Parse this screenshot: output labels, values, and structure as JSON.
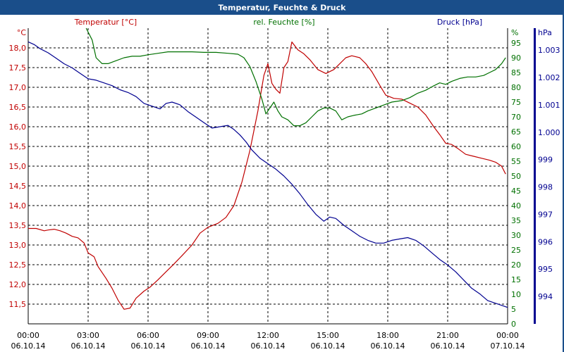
{
  "chart_data": {
    "type": "line",
    "title": "Temperatur, Feuchte & Druck",
    "colors": {
      "temperature": "#c00000",
      "humidity": "#007000",
      "pressure": "#000090",
      "title_bar": "#1a4e8a"
    },
    "grid": true,
    "x_ticks": [
      {
        "time": "00:00",
        "date": "06.10.14"
      },
      {
        "time": "03:00",
        "date": "06.10.14"
      },
      {
        "time": "06:00",
        "date": "06.10.14"
      },
      {
        "time": "09:00",
        "date": "06.10.14"
      },
      {
        "time": "12:00",
        "date": "06.10.14"
      },
      {
        "time": "15:00",
        "date": "06.10.14"
      },
      {
        "time": "18:00",
        "date": "06.10.14"
      },
      {
        "time": "21:00",
        "date": "06.10.14"
      },
      {
        "time": "00:00",
        "date": "07.10.14"
      }
    ],
    "x_range_hours": [
      0,
      24
    ],
    "axes": {
      "temperature": {
        "label": "Temperatur [°C]",
        "unit": "°C",
        "range": [
          11.0,
          18.5
        ],
        "ticks": [
          "11,5",
          "12,0",
          "12,5",
          "13,0",
          "13,5",
          "14,0",
          "14,5",
          "15,0",
          "15,5",
          "16,0",
          "16,5",
          "17,0",
          "17,5",
          "18,0"
        ]
      },
      "humidity": {
        "label": "rel. Feuchte [%]",
        "unit": "%",
        "range": [
          0,
          100
        ],
        "ticks": [
          "0",
          "5",
          "10",
          "15",
          "20",
          "25",
          "30",
          "35",
          "40",
          "45",
          "50",
          "55",
          "60",
          "65",
          "70",
          "75",
          "80",
          "85",
          "90",
          "95"
        ]
      },
      "pressure": {
        "label": "Druck [hPa]",
        "unit": "hPa",
        "range": [
          993.0,
          1003.8
        ],
        "ticks": [
          "994",
          "995",
          "996",
          "997",
          "998",
          "999",
          "1.000",
          "1.001",
          "1.002",
          "1.003"
        ]
      }
    },
    "series": [
      {
        "name": "Temperatur [°C]",
        "axis": "temperature",
        "points": [
          [
            0,
            13.42
          ],
          [
            0.4,
            13.42
          ],
          [
            0.8,
            13.36
          ],
          [
            1.0,
            13.38
          ],
          [
            1.3,
            13.4
          ],
          [
            1.6,
            13.36
          ],
          [
            1.9,
            13.3
          ],
          [
            2.2,
            13.22
          ],
          [
            2.5,
            13.18
          ],
          [
            2.8,
            13.05
          ],
          [
            3.0,
            12.8
          ],
          [
            3.3,
            12.7
          ],
          [
            3.5,
            12.45
          ],
          [
            3.9,
            12.15
          ],
          [
            4.2,
            11.9
          ],
          [
            4.5,
            11.6
          ],
          [
            4.8,
            11.37
          ],
          [
            5.1,
            11.4
          ],
          [
            5.4,
            11.65
          ],
          [
            5.8,
            11.83
          ],
          [
            6.1,
            11.93
          ],
          [
            6.5,
            12.12
          ],
          [
            6.9,
            12.32
          ],
          [
            7.3,
            12.52
          ],
          [
            7.7,
            12.73
          ],
          [
            8.2,
            13.0
          ],
          [
            8.6,
            13.3
          ],
          [
            9.0,
            13.45
          ],
          [
            9.5,
            13.55
          ],
          [
            9.9,
            13.7
          ],
          [
            10.3,
            14.0
          ],
          [
            10.7,
            14.6
          ],
          [
            11.1,
            15.4
          ],
          [
            11.5,
            16.4
          ],
          [
            11.8,
            17.3
          ],
          [
            12.0,
            17.6
          ],
          [
            12.2,
            17.1
          ],
          [
            12.4,
            16.95
          ],
          [
            12.6,
            16.85
          ],
          [
            12.8,
            17.5
          ],
          [
            13.0,
            17.65
          ],
          [
            13.2,
            18.15
          ],
          [
            13.5,
            17.95
          ],
          [
            13.8,
            17.85
          ],
          [
            14.1,
            17.7
          ],
          [
            14.5,
            17.45
          ],
          [
            14.9,
            17.35
          ],
          [
            15.3,
            17.45
          ],
          [
            15.6,
            17.6
          ],
          [
            15.9,
            17.75
          ],
          [
            16.2,
            17.8
          ],
          [
            16.6,
            17.75
          ],
          [
            16.9,
            17.6
          ],
          [
            17.2,
            17.4
          ],
          [
            17.6,
            17.05
          ],
          [
            17.9,
            16.8
          ],
          [
            18.3,
            16.72
          ],
          [
            18.7,
            16.7
          ],
          [
            19.1,
            16.6
          ],
          [
            19.5,
            16.5
          ],
          [
            19.9,
            16.3
          ],
          [
            20.3,
            16.0
          ],
          [
            20.6,
            15.8
          ],
          [
            20.9,
            15.58
          ],
          [
            21.2,
            15.55
          ],
          [
            21.5,
            15.45
          ],
          [
            21.9,
            15.3
          ],
          [
            22.3,
            15.25
          ],
          [
            22.7,
            15.2
          ],
          [
            23.1,
            15.15
          ],
          [
            23.4,
            15.1
          ],
          [
            23.7,
            15.0
          ],
          [
            23.9,
            14.8
          ]
        ]
      },
      {
        "name": "rel. Feuchte [%]",
        "axis": "humidity",
        "points": [
          [
            2.9,
            100
          ],
          [
            3.2,
            96
          ],
          [
            3.4,
            90
          ],
          [
            3.7,
            88
          ],
          [
            4.0,
            88
          ],
          [
            4.4,
            89
          ],
          [
            4.8,
            90
          ],
          [
            5.2,
            90.5
          ],
          [
            5.6,
            90.5
          ],
          [
            6.0,
            91
          ],
          [
            6.5,
            91.5
          ],
          [
            7.0,
            92
          ],
          [
            7.6,
            92
          ],
          [
            8.2,
            92
          ],
          [
            8.8,
            91.8
          ],
          [
            9.4,
            91.8
          ],
          [
            10.0,
            91.5
          ],
          [
            10.5,
            91.2
          ],
          [
            10.8,
            90
          ],
          [
            11.1,
            87
          ],
          [
            11.4,
            82
          ],
          [
            11.7,
            76
          ],
          [
            11.9,
            71
          ],
          [
            12.1,
            73
          ],
          [
            12.3,
            75
          ],
          [
            12.5,
            72
          ],
          [
            12.7,
            70
          ],
          [
            13.0,
            69
          ],
          [
            13.3,
            67
          ],
          [
            13.6,
            67
          ],
          [
            13.9,
            68
          ],
          [
            14.2,
            70
          ],
          [
            14.5,
            72
          ],
          [
            14.8,
            73
          ],
          [
            15.1,
            73
          ],
          [
            15.4,
            72
          ],
          [
            15.7,
            69
          ],
          [
            16.0,
            70
          ],
          [
            16.3,
            70.5
          ],
          [
            16.7,
            71
          ],
          [
            17.0,
            72
          ],
          [
            17.4,
            73
          ],
          [
            17.8,
            74
          ],
          [
            18.2,
            75
          ],
          [
            18.7,
            75.5
          ],
          [
            19.1,
            76.5
          ],
          [
            19.5,
            78
          ],
          [
            19.9,
            79
          ],
          [
            20.3,
            80.5
          ],
          [
            20.6,
            81.5
          ],
          [
            20.9,
            81
          ],
          [
            21.2,
            82
          ],
          [
            21.6,
            83
          ],
          [
            22.0,
            83.5
          ],
          [
            22.4,
            83.5
          ],
          [
            22.8,
            84
          ],
          [
            23.1,
            85
          ],
          [
            23.4,
            86
          ],
          [
            23.7,
            88
          ],
          [
            23.9,
            90
          ]
        ]
      },
      {
        "name": "Druck [hPa]",
        "axis": "pressure",
        "points": [
          [
            0,
            1003.3
          ],
          [
            0.3,
            1003.2
          ],
          [
            0.6,
            1003.05
          ],
          [
            1.0,
            1002.9
          ],
          [
            1.4,
            1002.7
          ],
          [
            1.8,
            1002.5
          ],
          [
            2.2,
            1002.35
          ],
          [
            2.6,
            1002.15
          ],
          [
            3.0,
            1001.95
          ],
          [
            3.4,
            1001.9
          ],
          [
            3.8,
            1001.8
          ],
          [
            4.2,
            1001.7
          ],
          [
            4.6,
            1001.55
          ],
          [
            5.0,
            1001.45
          ],
          [
            5.4,
            1001.3
          ],
          [
            5.8,
            1001.05
          ],
          [
            6.2,
            1000.95
          ],
          [
            6.6,
            1000.85
          ],
          [
            6.9,
            1001.05
          ],
          [
            7.2,
            1001.1
          ],
          [
            7.6,
            1001.0
          ],
          [
            8.0,
            1000.75
          ],
          [
            8.4,
            1000.55
          ],
          [
            8.8,
            1000.35
          ],
          [
            9.2,
            1000.15
          ],
          [
            9.6,
            1000.2
          ],
          [
            10.0,
            1000.25
          ],
          [
            10.3,
            1000.1
          ],
          [
            10.6,
            999.9
          ],
          [
            10.9,
            999.65
          ],
          [
            11.2,
            999.35
          ],
          [
            11.6,
            999.05
          ],
          [
            12.0,
            998.85
          ],
          [
            12.4,
            998.65
          ],
          [
            12.8,
            998.4
          ],
          [
            13.2,
            998.1
          ],
          [
            13.6,
            997.75
          ],
          [
            14.0,
            997.35
          ],
          [
            14.4,
            997.0
          ],
          [
            14.8,
            996.75
          ],
          [
            15.1,
            996.9
          ],
          [
            15.4,
            996.85
          ],
          [
            15.8,
            996.6
          ],
          [
            16.2,
            996.4
          ],
          [
            16.6,
            996.2
          ],
          [
            17.0,
            996.05
          ],
          [
            17.4,
            995.95
          ],
          [
            17.8,
            995.95
          ],
          [
            18.2,
            996.05
          ],
          [
            18.6,
            996.1
          ],
          [
            19.0,
            996.15
          ],
          [
            19.4,
            996.05
          ],
          [
            19.8,
            995.85
          ],
          [
            20.2,
            995.6
          ],
          [
            20.6,
            995.35
          ],
          [
            21.0,
            995.15
          ],
          [
            21.4,
            994.9
          ],
          [
            21.8,
            994.6
          ],
          [
            22.2,
            994.3
          ],
          [
            22.6,
            994.1
          ],
          [
            23.0,
            993.85
          ],
          [
            23.4,
            993.75
          ],
          [
            23.8,
            993.65
          ],
          [
            24.0,
            993.6
          ]
        ]
      }
    ]
  }
}
